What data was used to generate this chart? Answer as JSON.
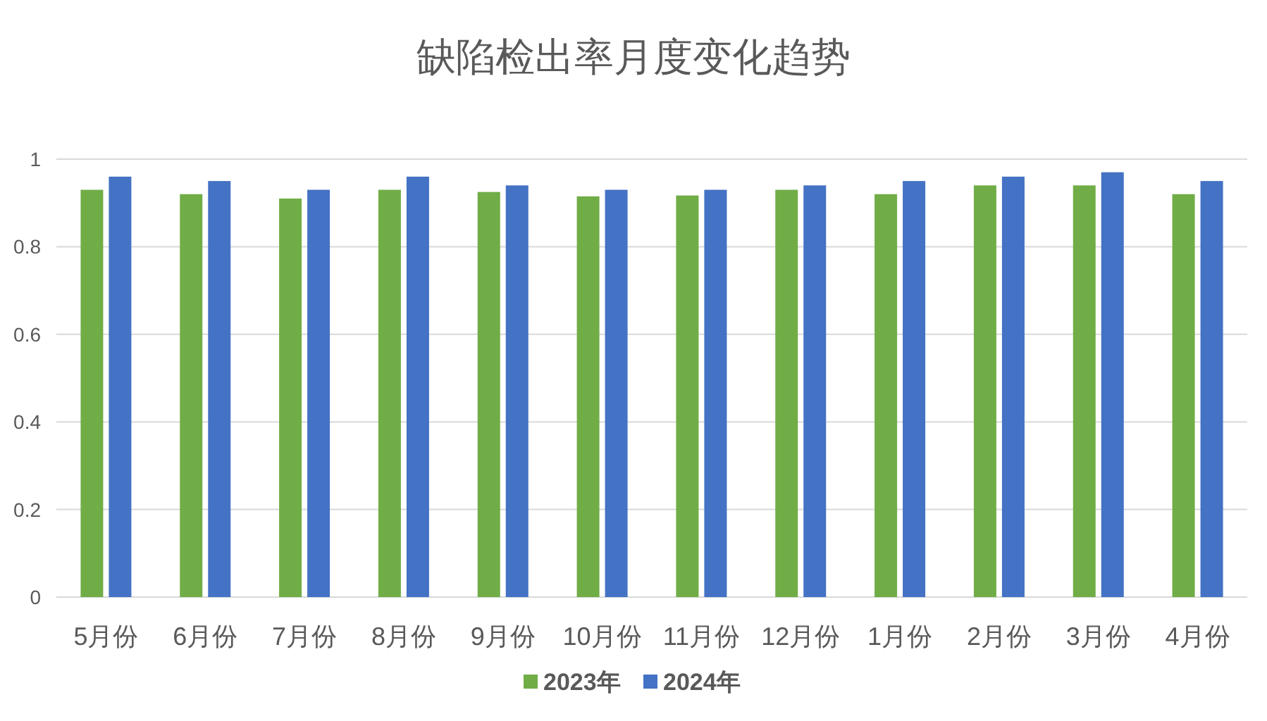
{
  "chart_data": {
    "type": "bar",
    "title": "缺陷检出率月度变化趋势",
    "categories": [
      "5月份",
      "6月份",
      "7月份",
      "8月份",
      "9月份",
      "10月份",
      "11月份",
      "12月份",
      "1月份",
      "2月份",
      "3月份",
      "4月份"
    ],
    "series": [
      {
        "name": "2023年",
        "color": "#70ad47",
        "values": [
          0.93,
          0.92,
          0.91,
          0.93,
          0.925,
          0.915,
          0.917,
          0.93,
          0.92,
          0.94,
          0.94,
          0.92
        ]
      },
      {
        "name": "2024年",
        "color": "#4472c4",
        "values": [
          0.96,
          0.95,
          0.93,
          0.96,
          0.94,
          0.93,
          0.93,
          0.94,
          0.95,
          0.96,
          0.97,
          0.95
        ]
      }
    ],
    "ylim": [
      0,
      1
    ],
    "yticks": [
      0,
      0.2,
      0.4,
      0.6,
      0.8,
      1
    ],
    "grid": "y",
    "legend": "bottom"
  }
}
